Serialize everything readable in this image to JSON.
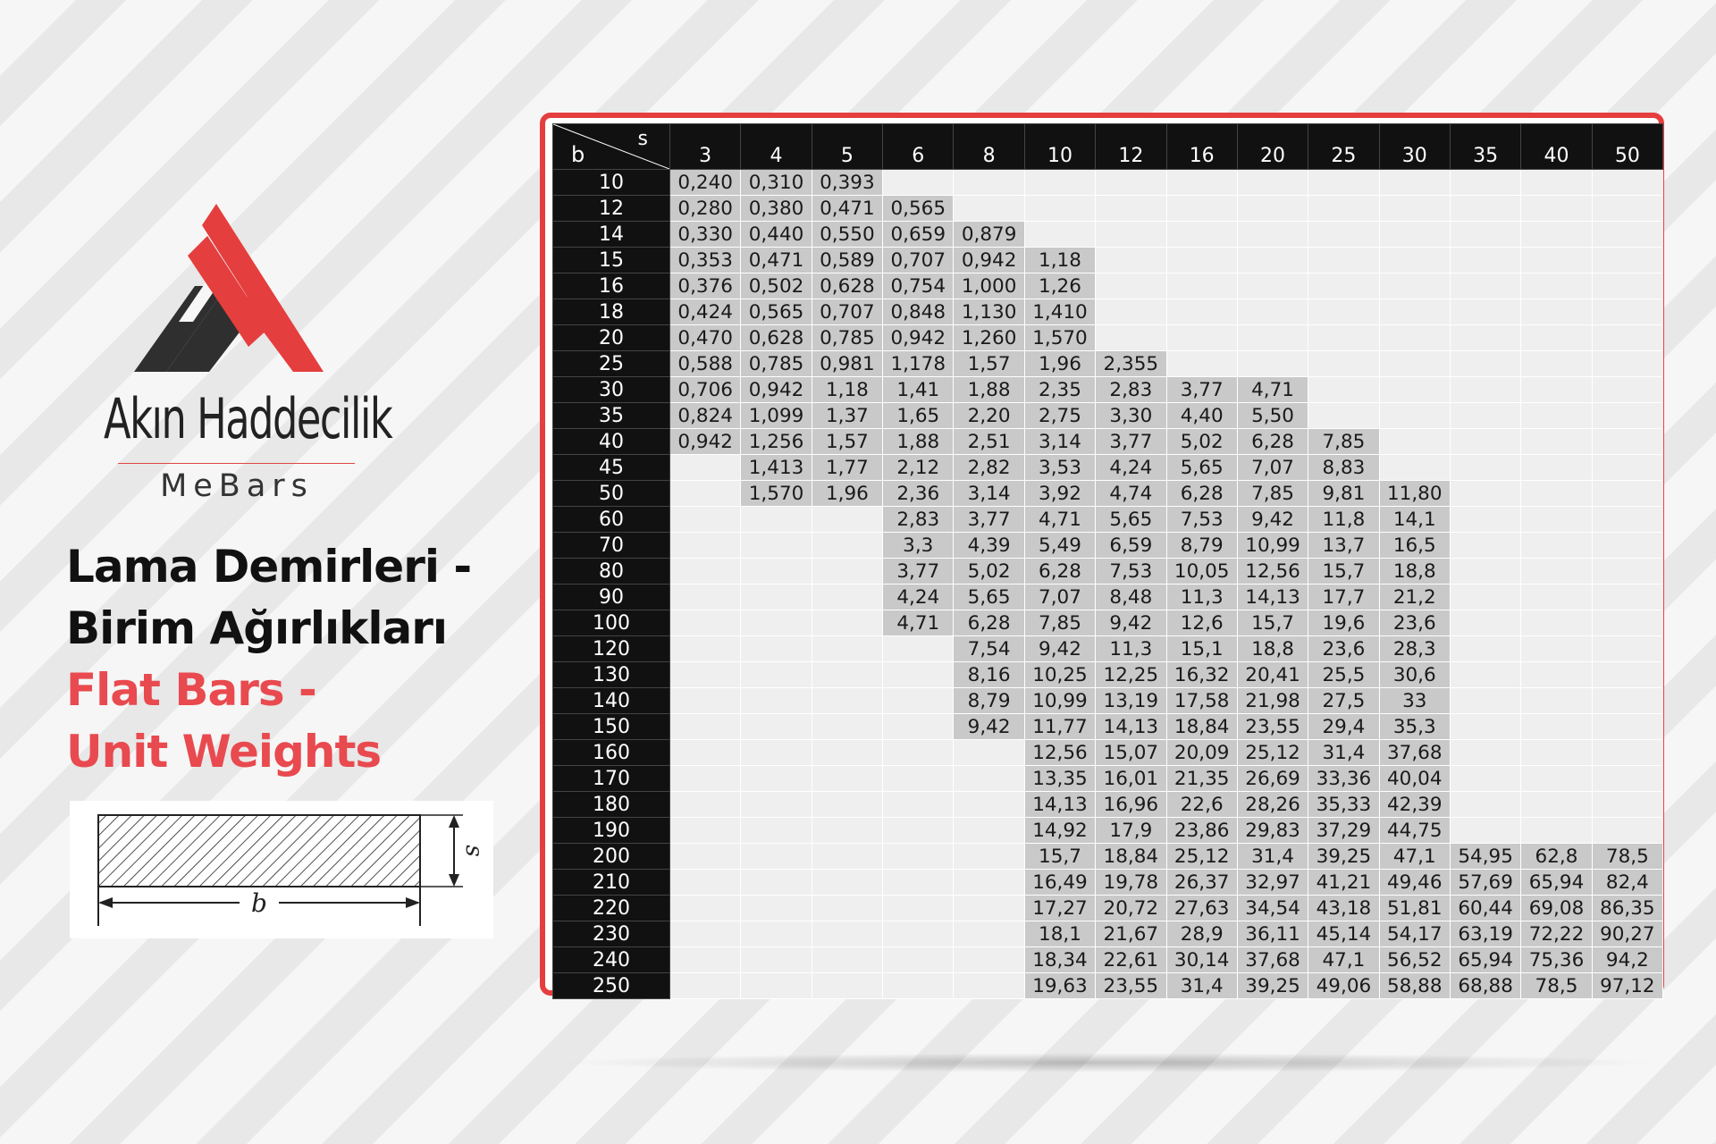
{
  "brand": {
    "name": "Akın Haddecilik",
    "sub": "MeBars",
    "colors": {
      "red": "#e53e3e",
      "dark": "#2f2f2f"
    }
  },
  "title": {
    "tr_line1": "Lama Demirleri -",
    "tr_line2": "Birim Ağırlıkları",
    "en_line1": "Flat Bars -",
    "en_line2": "Unit Weights"
  },
  "diagram": {
    "label_b": "b",
    "label_s": "s"
  },
  "table": {
    "corner_b": "b",
    "corner_s": "s",
    "s_headers": [
      "3",
      "4",
      "5",
      "6",
      "8",
      "10",
      "12",
      "16",
      "20",
      "25",
      "30",
      "35",
      "40",
      "50"
    ],
    "rows": [
      {
        "b": "10",
        "cells": [
          "0,240",
          "0,310",
          "0,393",
          "",
          "",
          "",
          "",
          "",
          "",
          "",
          "",
          "",
          "",
          ""
        ]
      },
      {
        "b": "12",
        "cells": [
          "0,280",
          "0,380",
          "0,471",
          "0,565",
          "",
          "",
          "",
          "",
          "",
          "",
          "",
          "",
          "",
          ""
        ]
      },
      {
        "b": "14",
        "cells": [
          "0,330",
          "0,440",
          "0,550",
          "0,659",
          "0,879",
          "",
          "",
          "",
          "",
          "",
          "",
          "",
          "",
          ""
        ]
      },
      {
        "b": "15",
        "cells": [
          "0,353",
          "0,471",
          "0,589",
          "0,707",
          "0,942",
          "1,18",
          "",
          "",
          "",
          "",
          "",
          "",
          "",
          ""
        ]
      },
      {
        "b": "16",
        "cells": [
          "0,376",
          "0,502",
          "0,628",
          "0,754",
          "1,000",
          "1,26",
          "",
          "",
          "",
          "",
          "",
          "",
          "",
          ""
        ]
      },
      {
        "b": "18",
        "cells": [
          "0,424",
          "0,565",
          "0,707",
          "0,848",
          "1,130",
          "1,410",
          "",
          "",
          "",
          "",
          "",
          "",
          "",
          ""
        ]
      },
      {
        "b": "20",
        "cells": [
          "0,470",
          "0,628",
          "0,785",
          "0,942",
          "1,260",
          "1,570",
          "",
          "",
          "",
          "",
          "",
          "",
          "",
          ""
        ]
      },
      {
        "b": "25",
        "cells": [
          "0,588",
          "0,785",
          "0,981",
          "1,178",
          "1,57",
          "1,96",
          "2,355",
          "",
          "",
          "",
          "",
          "",
          "",
          ""
        ]
      },
      {
        "b": "30",
        "cells": [
          "0,706",
          "0,942",
          "1,18",
          "1,41",
          "1,88",
          "2,35",
          "2,83",
          "3,77",
          "4,71",
          "",
          "",
          "",
          "",
          ""
        ]
      },
      {
        "b": "35",
        "cells": [
          "0,824",
          "1,099",
          "1,37",
          "1,65",
          "2,20",
          "2,75",
          "3,30",
          "4,40",
          "5,50",
          "",
          "",
          "",
          "",
          ""
        ]
      },
      {
        "b": "40",
        "cells": [
          "0,942",
          "1,256",
          "1,57",
          "1,88",
          "2,51",
          "3,14",
          "3,77",
          "5,02",
          "6,28",
          "7,85",
          "",
          "",
          "",
          ""
        ]
      },
      {
        "b": "45",
        "cells": [
          "",
          "1,413",
          "1,77",
          "2,12",
          "2,82",
          "3,53",
          "4,24",
          "5,65",
          "7,07",
          "8,83",
          "",
          "",
          "",
          ""
        ]
      },
      {
        "b": "50",
        "cells": [
          "",
          "1,570",
          "1,96",
          "2,36",
          "3,14",
          "3,92",
          "4,74",
          "6,28",
          "7,85",
          "9,81",
          "11,80",
          "",
          "",
          ""
        ]
      },
      {
        "b": "60",
        "cells": [
          "",
          "",
          "",
          "2,83",
          "3,77",
          "4,71",
          "5,65",
          "7,53",
          "9,42",
          "11,8",
          "14,1",
          "",
          "",
          ""
        ]
      },
      {
        "b": "70",
        "cells": [
          "",
          "",
          "",
          "3,3",
          "4,39",
          "5,49",
          "6,59",
          "8,79",
          "10,99",
          "13,7",
          "16,5",
          "",
          "",
          ""
        ]
      },
      {
        "b": "80",
        "cells": [
          "",
          "",
          "",
          "3,77",
          "5,02",
          "6,28",
          "7,53",
          "10,05",
          "12,56",
          "15,7",
          "18,8",
          "",
          "",
          ""
        ]
      },
      {
        "b": "90",
        "cells": [
          "",
          "",
          "",
          "4,24",
          "5,65",
          "7,07",
          "8,48",
          "11,3",
          "14,13",
          "17,7",
          "21,2",
          "",
          "",
          ""
        ]
      },
      {
        "b": "100",
        "cells": [
          "",
          "",
          "",
          "4,71",
          "6,28",
          "7,85",
          "9,42",
          "12,6",
          "15,7",
          "19,6",
          "23,6",
          "",
          "",
          ""
        ]
      },
      {
        "b": "120",
        "cells": [
          "",
          "",
          "",
          "",
          "7,54",
          "9,42",
          "11,3",
          "15,1",
          "18,8",
          "23,6",
          "28,3",
          "",
          "",
          ""
        ]
      },
      {
        "b": "130",
        "cells": [
          "",
          "",
          "",
          "",
          "8,16",
          "10,25",
          "12,25",
          "16,32",
          "20,41",
          "25,5",
          "30,6",
          "",
          "",
          ""
        ]
      },
      {
        "b": "140",
        "cells": [
          "",
          "",
          "",
          "",
          "8,79",
          "10,99",
          "13,19",
          "17,58",
          "21,98",
          "27,5",
          "33",
          "",
          "",
          ""
        ]
      },
      {
        "b": "150",
        "cells": [
          "",
          "",
          "",
          "",
          "9,42",
          "11,77",
          "14,13",
          "18,84",
          "23,55",
          "29,4",
          "35,3",
          "",
          "",
          ""
        ]
      },
      {
        "b": "160",
        "cells": [
          "",
          "",
          "",
          "",
          "",
          "12,56",
          "15,07",
          "20,09",
          "25,12",
          "31,4",
          "37,68",
          "",
          "",
          ""
        ]
      },
      {
        "b": "170",
        "cells": [
          "",
          "",
          "",
          "",
          "",
          "13,35",
          "16,01",
          "21,35",
          "26,69",
          "33,36",
          "40,04",
          "",
          "",
          ""
        ]
      },
      {
        "b": "180",
        "cells": [
          "",
          "",
          "",
          "",
          "",
          "14,13",
          "16,96",
          "22,6",
          "28,26",
          "35,33",
          "42,39",
          "",
          "",
          ""
        ]
      },
      {
        "b": "190",
        "cells": [
          "",
          "",
          "",
          "",
          "",
          "14,92",
          "17,9",
          "23,86",
          "29,83",
          "37,29",
          "44,75",
          "",
          "",
          ""
        ]
      },
      {
        "b": "200",
        "cells": [
          "",
          "",
          "",
          "",
          "",
          "15,7",
          "18,84",
          "25,12",
          "31,4",
          "39,25",
          "47,1",
          "54,95",
          "62,8",
          "78,5"
        ]
      },
      {
        "b": "210",
        "cells": [
          "",
          "",
          "",
          "",
          "",
          "16,49",
          "19,78",
          "26,37",
          "32,97",
          "41,21",
          "49,46",
          "57,69",
          "65,94",
          "82,4"
        ]
      },
      {
        "b": "220",
        "cells": [
          "",
          "",
          "",
          "",
          "",
          "17,27",
          "20,72",
          "27,63",
          "34,54",
          "43,18",
          "51,81",
          "60,44",
          "69,08",
          "86,35"
        ]
      },
      {
        "b": "230",
        "cells": [
          "",
          "",
          "",
          "",
          "",
          "18,1",
          "21,67",
          "28,9",
          "36,11",
          "45,14",
          "54,17",
          "63,19",
          "72,22",
          "90,27"
        ]
      },
      {
        "b": "240",
        "cells": [
          "",
          "",
          "",
          "",
          "",
          "18,34",
          "22,61",
          "30,14",
          "37,68",
          "47,1",
          "56,52",
          "65,94",
          "75,36",
          "94,2"
        ]
      },
      {
        "b": "250",
        "cells": [
          "",
          "",
          "",
          "",
          "",
          "19,63",
          "23,55",
          "31,4",
          "39,25",
          "49,06",
          "58,88",
          "68,88",
          "78,5",
          "97,12"
        ]
      }
    ]
  }
}
